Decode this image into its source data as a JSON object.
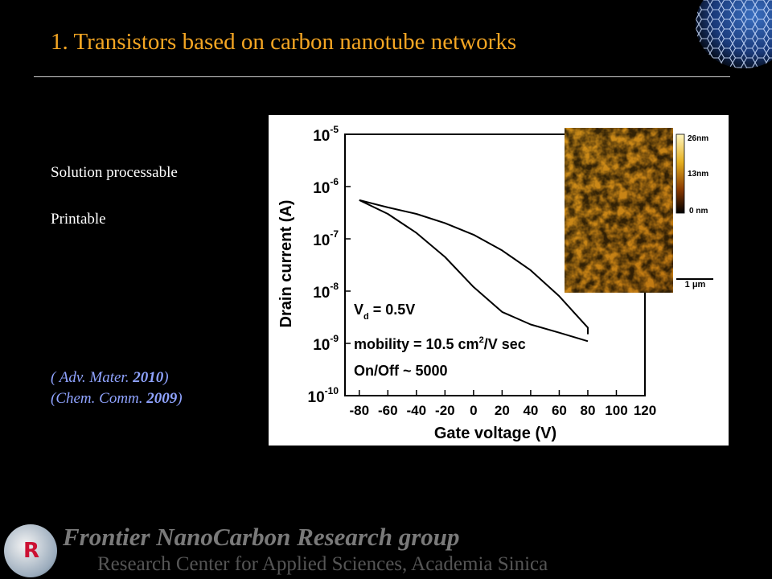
{
  "slide": {
    "title": "1. Transistors based on carbon nanotube networks",
    "bullets": [
      "Solution processable",
      "Printable"
    ],
    "references": [
      {
        "journal": "( Adv. Mater.  ",
        "year": "2010",
        "close": ")"
      },
      {
        "journal": "(Chem. Comm. ",
        "year": "2009",
        "close": ")"
      }
    ]
  },
  "footer": {
    "group_name": "Frontier NanoCarbon Research group",
    "institution": "Research Center for Applied Sciences, Academia Sinica",
    "logo_letters": "R"
  },
  "colors": {
    "title": "#f5a623",
    "reference_text": "#8fa3ff",
    "footer_text": "#7a7a7a"
  },
  "chart_data": {
    "type": "line",
    "xlabel": "Gate voltage (V)",
    "ylabel": "Drain current (A)",
    "xlim": [
      -90,
      120
    ],
    "ylim_log10": [
      -10,
      -5
    ],
    "y_scale": "log",
    "x_ticks": [
      "-80",
      "-60",
      "-40",
      "-20",
      "0",
      "20",
      "40",
      "60",
      "80",
      "100",
      "120"
    ],
    "y_tick_base": "10",
    "y_tick_exponents": [
      "-5",
      "-6",
      "-7",
      "-8",
      "-9",
      "-10"
    ],
    "annotations": {
      "vd_main": "V",
      "vd_sub": "d",
      "vd_rest": " = 0.5V",
      "mobility_a": "mobility = 10.5 cm",
      "mobility_sup": "2",
      "mobility_b": "/V sec",
      "onoff": "On/Off  ~  5000"
    },
    "series": [
      {
        "x": [
          -80,
          -60,
          -40,
          -20,
          0,
          20,
          40,
          60,
          70,
          80,
          80
        ],
        "y": [
          5.5e-07,
          4e-07,
          3e-07,
          2e-07,
          1.2e-07,
          6e-08,
          2.5e-08,
          8e-09,
          4e-09,
          2e-09,
          1.5e-09
        ]
      },
      {
        "x": [
          80,
          60,
          40,
          20,
          0,
          -20,
          -40,
          -60,
          -80
        ],
        "y": [
          1.1e-09,
          1.6e-09,
          2.3e-09,
          4e-09,
          1.2e-08,
          4.5e-08,
          1.3e-07,
          3e-07,
          5.5e-07
        ]
      }
    ],
    "inset": {
      "colorbar_labels": [
        "26nm",
        "13nm",
        "0 nm"
      ],
      "scalebar_label": "1 μm"
    }
  }
}
